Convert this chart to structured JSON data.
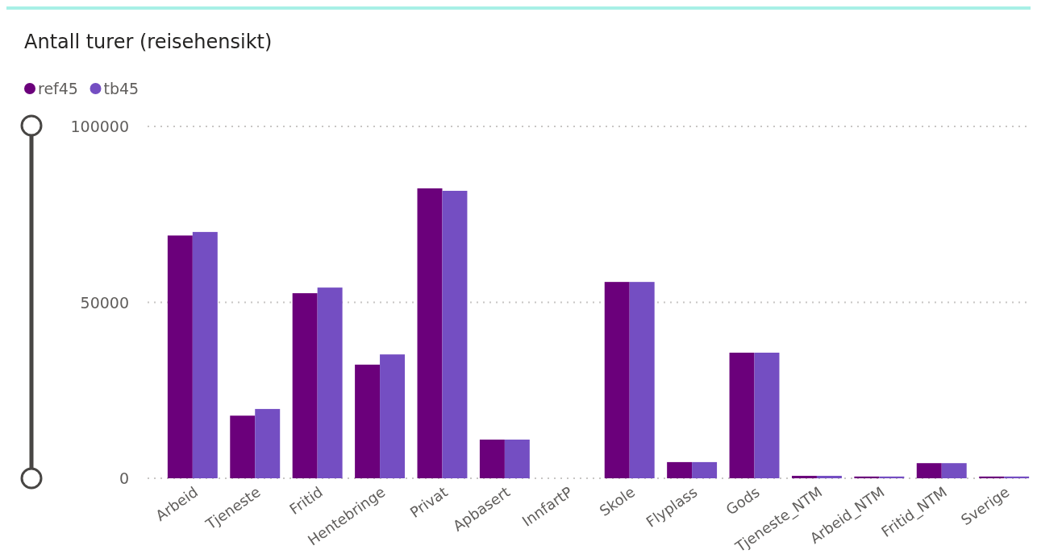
{
  "chart_data": {
    "type": "bar",
    "title": "Antall turer (reisehensikt)",
    "categories": [
      "Arbeid",
      "Tjeneste",
      "Fritid",
      "Hentebringe",
      "Privat",
      "Apbasert",
      "InnfartP",
      "Skole",
      "Flyplass",
      "Gods",
      "Tjeneste_NTM",
      "Arbeid_NTM",
      "Fritid_NTM",
      "Sverige"
    ],
    "series": [
      {
        "name": "ref45",
        "color": "#6b007b",
        "values": [
          69000,
          17800,
          52600,
          32300,
          82400,
          11000,
          0,
          55800,
          4600,
          35700,
          700,
          500,
          4300,
          500
        ]
      },
      {
        "name": "tb45",
        "color": "#744ec2",
        "values": [
          70000,
          19700,
          54200,
          35200,
          81700,
          11000,
          0,
          55800,
          4600,
          35700,
          700,
          500,
          4300,
          500
        ]
      }
    ],
    "ylim": [
      0,
      100000
    ],
    "yticks": [
      0,
      50000,
      100000
    ],
    "grid": "y",
    "legend": "top left"
  }
}
